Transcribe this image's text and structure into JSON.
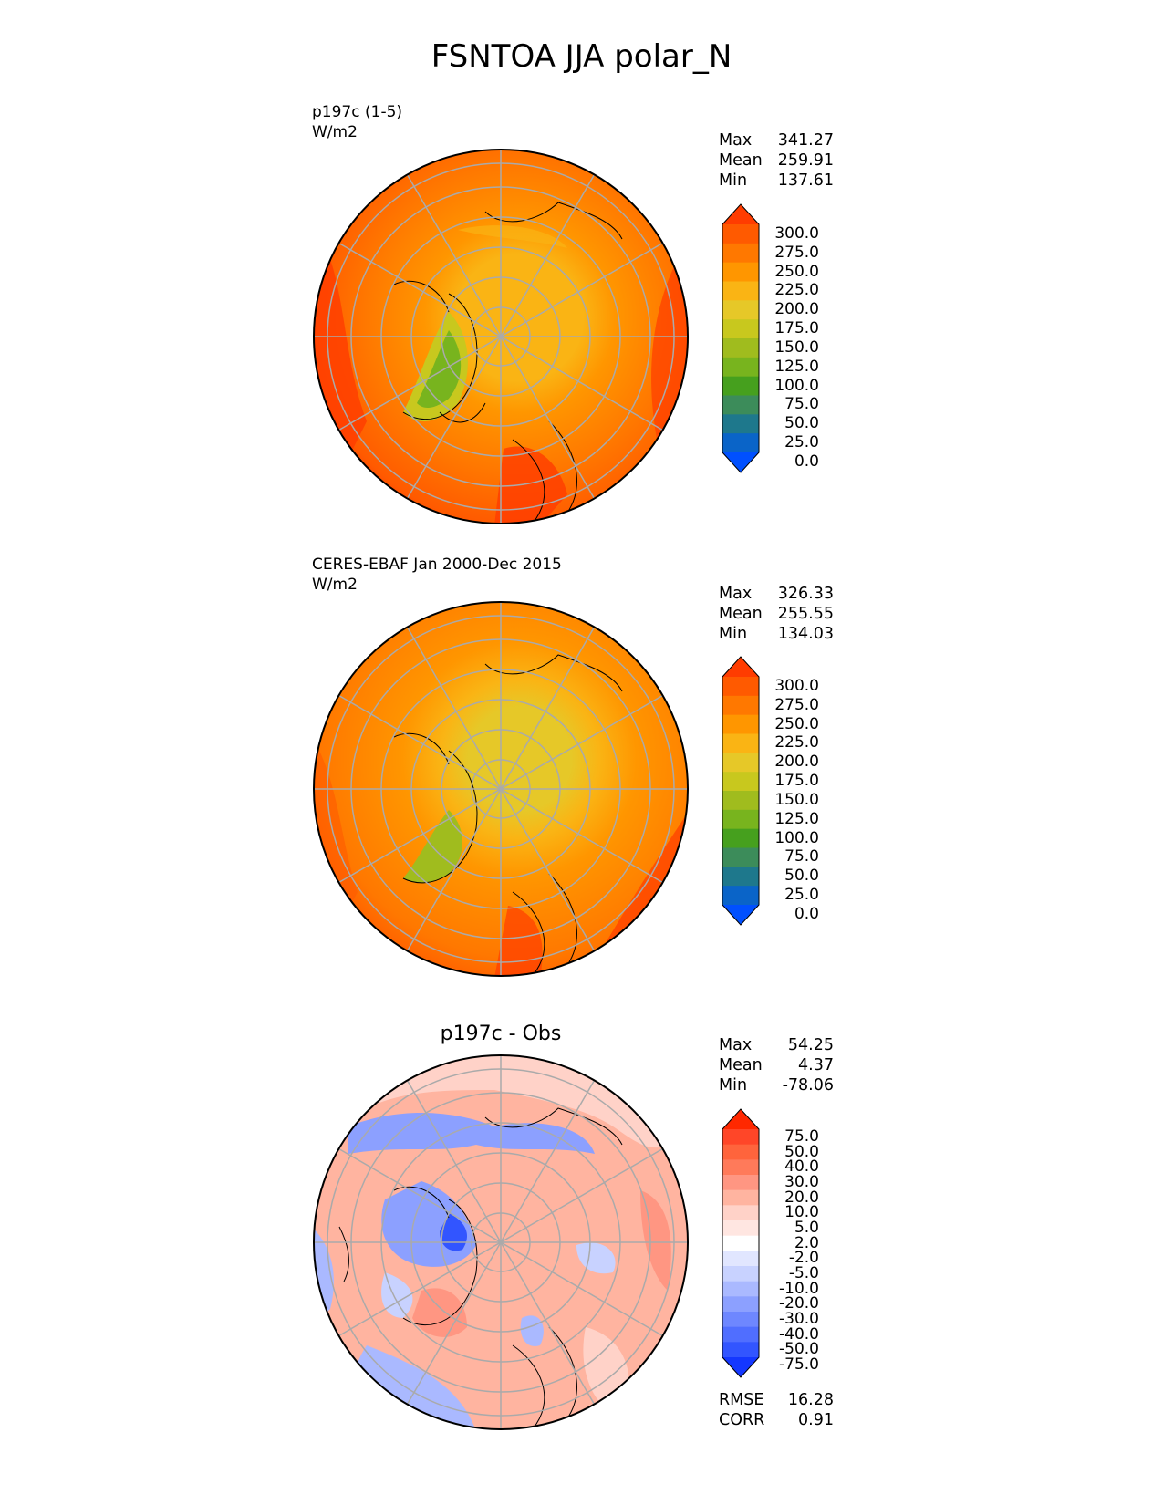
{
  "title": "FSNTOA JJA polar_N",
  "panels": [
    {
      "label_line1": "p197c (1-5)",
      "label_line2": "W/m2",
      "center_title": "",
      "stats": [
        {
          "name": "Max",
          "value": "341.27"
        },
        {
          "name": "Mean",
          "value": "259.91"
        },
        {
          "name": "Min",
          "value": "137.61"
        }
      ],
      "colorbar_labels": [
        "300.0",
        "275.0",
        "250.0",
        "225.0",
        "200.0",
        "175.0",
        "150.0",
        "125.0",
        "100.0",
        "75.0",
        "50.0",
        "25.0",
        "0.0"
      ],
      "colorbar_colors": [
        "#ff3c00",
        "#ff5a00",
        "#ff7800",
        "#ff9600",
        "#fab414",
        "#e6c828",
        "#c8c81e",
        "#a0bc1e",
        "#78b41e",
        "#46a01e",
        "#3c8c5a",
        "#1e788c",
        "#0a64c8",
        "#0050ff"
      ]
    },
    {
      "label_line1": "CERES-EBAF Jan 2000-Dec 2015",
      "label_line2": "W/m2",
      "center_title": "",
      "stats": [
        {
          "name": "Max",
          "value": "326.33"
        },
        {
          "name": "Mean",
          "value": "255.55"
        },
        {
          "name": "Min",
          "value": "134.03"
        }
      ],
      "colorbar_labels": [
        "300.0",
        "275.0",
        "250.0",
        "225.0",
        "200.0",
        "175.0",
        "150.0",
        "125.0",
        "100.0",
        "75.0",
        "50.0",
        "25.0",
        "0.0"
      ],
      "colorbar_colors": [
        "#ff3c00",
        "#ff5a00",
        "#ff7800",
        "#ff9600",
        "#fab414",
        "#e6c828",
        "#c8c81e",
        "#a0bc1e",
        "#78b41e",
        "#46a01e",
        "#3c8c5a",
        "#1e788c",
        "#0a64c8",
        "#0050ff"
      ]
    },
    {
      "label_line1": "",
      "label_line2": "",
      "center_title": "p197c - Obs",
      "stats": [
        {
          "name": "Max",
          "value": "54.25"
        },
        {
          "name": "Mean",
          "value": "4.37"
        },
        {
          "name": "Min",
          "value": "-78.06"
        }
      ],
      "extra_stats": [
        {
          "name": "RMSE",
          "value": "16.28"
        },
        {
          "name": "CORR",
          "value": "0.91"
        }
      ],
      "colorbar_labels": [
        "75.0",
        "50.0",
        "40.0",
        "30.0",
        "20.0",
        "10.0",
        "5.0",
        "2.0",
        "-2.0",
        "-5.0",
        "-10.0",
        "-20.0",
        "-30.0",
        "-40.0",
        "-50.0",
        "-75.0"
      ],
      "colorbar_colors": [
        "#ff2800",
        "#ff4628",
        "#ff643c",
        "#ff7a5a",
        "#ff9682",
        "#ffb4a0",
        "#ffd2c8",
        "#ffe6e1",
        "#ffffff",
        "#e1e6ff",
        "#c8d2ff",
        "#aab9ff",
        "#8ca0ff",
        "#6e87ff",
        "#506eff",
        "#3255ff",
        "#1437ff"
      ]
    }
  ]
}
